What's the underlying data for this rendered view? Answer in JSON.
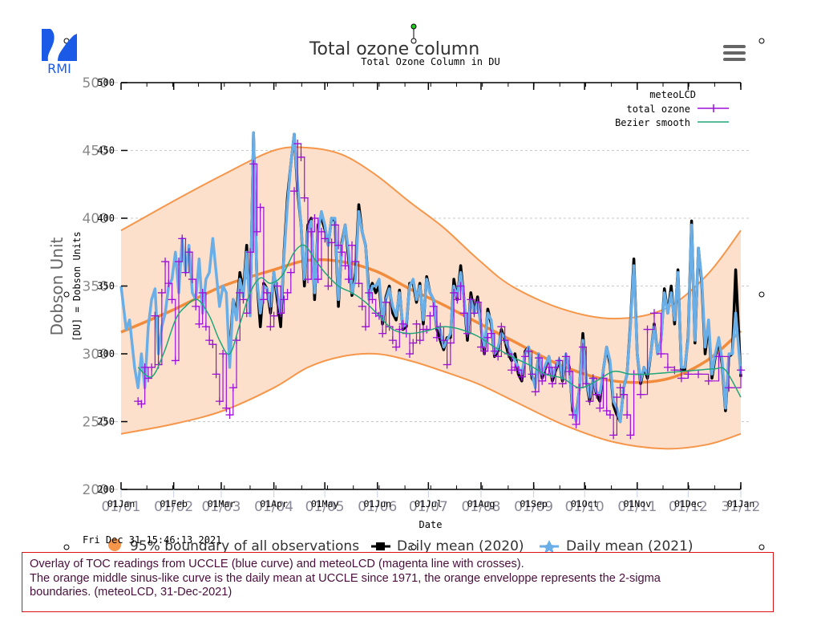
{
  "logo": {
    "text": "RMI",
    "color": "#1a5ae6"
  },
  "menu": {
    "icon": "hamburger-menu-icon"
  },
  "caption": {
    "lines": [
      "Overlay of TOC readings from UCCLE (blue curve) and meteoLCD (magenta line with crosses).",
      "The orange middle sinus-like curve is the daily mean at UCCLE since 1971, the orange enveloppe represents the 2-sigma",
      "boundaries. (meteoLCD, 31-Dec-2021)"
    ]
  },
  "timestamp": "Fri Dec 31 15:46:13 2021",
  "colors": {
    "envelope_fill": "#fde0cc",
    "envelope_line": "#f5964a",
    "mean_line": "#f28c3c",
    "uccle_2021": "#6aaee8",
    "uccle_2020": "#000000",
    "meteolcd": "#9b10d8",
    "bezier": "#1fa67a",
    "grid": "#c8c8c8"
  },
  "chart_data": {
    "type": "line",
    "title": "Total ozone column",
    "subtitle": "Total Ozone Column in DU",
    "xlabel": "Date",
    "ylabel_outer": "Dobson Unit",
    "ylabel_inner": "[DU] = Dobson Units",
    "ylim": [
      200,
      500
    ],
    "xlim_days": [
      0,
      365
    ],
    "y_ticks": [
      200,
      250,
      300,
      350,
      400,
      450,
      500
    ],
    "x_ticks_outer": [
      "01/01",
      "01/02",
      "01/03",
      "01/04",
      "01/05",
      "01/06",
      "01/07",
      "01/08",
      "01/09",
      "01/10",
      "01/11",
      "01/12",
      "31/12"
    ],
    "x_ticks_inner": [
      "01Jan",
      "01Feb",
      "01Mar",
      "01Apr",
      "01May",
      "01Jun",
      "01Jul",
      "01Aug",
      "01Sep",
      "01Oct",
      "01Nov",
      "01Dec",
      "01Jan"
    ],
    "x_tick_days": [
      0,
      31,
      59,
      90,
      120,
      151,
      181,
      212,
      243,
      273,
      304,
      334,
      365
    ],
    "grid": true,
    "legend_inner": {
      "position": "top-right",
      "title": "meteoLCD",
      "entries": [
        "total ozone",
        "Bezier smooth"
      ]
    },
    "legend_outer": {
      "position": "bottom",
      "entries": [
        "95% boundary of all observations",
        "Daily mean (2020)",
        "Daily mean (2021)"
      ]
    },
    "envelope": {
      "days": [
        0,
        30,
        60,
        90,
        110,
        130,
        150,
        170,
        190,
        210,
        230,
        260,
        290,
        320,
        345,
        365
      ],
      "upper": [
        391,
        412,
        432,
        450,
        452,
        447,
        432,
        412,
        393,
        370,
        350,
        333,
        326,
        333,
        358,
        391
      ],
      "lower": [
        241,
        248,
        258,
        275,
        290,
        298,
        300,
        295,
        287,
        278,
        266,
        248,
        235,
        230,
        233,
        241
      ],
      "mean": [
        316,
        332,
        350,
        362,
        369,
        368,
        361,
        348,
        336,
        323,
        310,
        291,
        280,
        281,
        295,
        317
      ]
    },
    "series": [
      {
        "name": "UCCLE daily mean (2021)",
        "days": [
          0,
          3,
          5,
          8,
          10,
          12,
          14,
          16,
          18,
          20,
          22,
          24,
          26,
          28,
          30,
          32,
          34,
          36,
          38,
          40,
          42,
          44,
          46,
          48,
          50,
          52,
          54,
          56,
          58,
          60,
          62,
          64,
          66,
          68,
          70,
          72,
          74,
          76,
          78,
          80,
          82,
          84,
          86,
          88,
          90,
          92,
          94,
          96,
          98,
          100,
          102,
          104,
          106,
          108,
          110,
          112,
          114,
          116,
          118,
          120,
          122,
          124,
          126,
          128,
          130,
          132,
          134,
          136,
          138,
          140,
          142,
          144,
          146,
          148,
          150,
          152,
          154,
          156,
          158,
          160,
          162,
          164,
          166,
          168,
          170,
          172,
          174,
          176,
          178,
          180,
          182,
          184,
          186,
          188,
          190,
          192,
          194,
          196,
          198,
          200,
          202,
          204,
          206,
          208,
          210,
          212,
          214,
          216,
          218,
          220,
          222,
          224,
          226,
          228,
          230,
          232,
          234,
          236,
          238,
          240,
          242,
          244,
          246,
          248,
          250,
          252,
          254,
          256,
          258,
          260,
          262,
          264,
          266,
          268,
          270,
          272,
          274,
          276,
          278,
          280,
          282,
          284,
          286,
          288,
          290,
          292,
          294,
          296,
          298,
          300,
          302,
          304,
          306,
          308,
          310,
          312,
          314,
          316,
          318,
          320,
          322,
          324,
          326,
          328,
          330,
          332,
          334,
          336,
          338,
          340,
          342,
          344,
          346,
          348,
          350,
          352,
          354,
          356,
          358,
          360,
          362,
          365
        ],
        "values": [
          350,
          318,
          325,
          290,
          275,
          300,
          275,
          320,
          340,
          348,
          300,
          320,
          330,
          350,
          355,
          375,
          345,
          385,
          360,
          380,
          345,
          340,
          370,
          330,
          355,
          360,
          385,
          360,
          335,
          350,
          345,
          290,
          340,
          325,
          355,
          342,
          375,
          328,
          463,
          355,
          330,
          350,
          348,
          335,
          360,
          345,
          330,
          372,
          410,
          440,
          462,
          425,
          395,
          355,
          390,
          398,
          345,
          390,
          405,
          395,
          380,
          400,
          400,
          340,
          380,
          395,
          375,
          345,
          355,
          405,
          390,
          380,
          340,
          350,
          350,
          355,
          325,
          340,
          348,
          335,
          328,
          345,
          320,
          322,
          350,
          355,
          340,
          350,
          325,
          355,
          345,
          340,
          320,
          318,
          305,
          310,
          315,
          350,
          342,
          360,
          340,
          315,
          340,
          330,
          338,
          320,
          305,
          330,
          325,
          300,
          305,
          315,
          312,
          305,
          300,
          295,
          290,
          285,
          300,
          305,
          285,
          275,
          300,
          285,
          292,
          298,
          283,
          290,
          296,
          282,
          300,
          288,
          262,
          250,
          275,
          310,
          280,
          268,
          282,
          272,
          270,
          288,
          305,
          295,
          265,
          260,
          250,
          275,
          285,
          320,
          365,
          300,
          280,
          290,
          285,
          300,
          320,
          300,
          310,
          345,
          330,
          345,
          325,
          360,
          290,
          290,
          310,
          395,
          310,
          378,
          355,
          305,
          325,
          285,
          300,
          312,
          295,
          260,
          300,
          300,
          330,
          285
        ]
      },
      {
        "name": "UCCLE daily mean (2020)",
        "days": [
          64,
          66,
          68,
          70,
          72,
          74,
          76,
          78,
          80,
          82,
          84,
          86,
          88,
          90,
          92,
          94,
          96,
          98,
          100,
          102,
          104,
          106,
          108,
          110,
          112,
          114,
          116,
          118,
          120,
          122,
          124,
          126,
          128,
          130,
          132,
          134,
          136,
          138,
          140,
          142,
          144,
          146,
          148,
          150,
          152,
          154,
          156,
          158,
          160,
          162,
          164,
          166,
          168,
          170,
          172,
          174,
          176,
          178,
          180,
          182,
          184,
          186,
          188,
          190,
          192,
          194,
          196,
          198,
          200,
          202,
          204,
          206,
          208,
          210,
          212,
          214,
          216,
          218,
          220,
          222,
          224,
          226,
          228,
          230,
          232,
          234,
          236,
          238,
          240,
          242,
          244,
          246,
          248,
          250,
          252,
          254,
          256,
          258,
          260,
          262,
          264,
          266,
          268,
          270,
          272,
          274,
          276,
          278,
          280,
          282,
          284,
          286,
          288,
          290,
          292,
          294,
          296,
          298,
          300,
          302,
          304,
          306,
          308,
          310,
          312,
          314,
          316,
          318,
          320,
          322,
          324,
          326,
          328,
          330,
          332,
          334,
          336,
          338,
          340,
          342,
          344,
          346,
          348,
          350,
          352,
          354,
          356,
          358,
          360,
          362,
          365
        ],
        "values": [
          300,
          340,
          330,
          360,
          345,
          380,
          330,
          463,
          355,
          320,
          352,
          348,
          330,
          360,
          340,
          320,
          375,
          415,
          440,
          462,
          420,
          395,
          350,
          395,
          400,
          340,
          395,
          400,
          392,
          380,
          400,
          398,
          335,
          382,
          395,
          370,
          343,
          360,
          410,
          390,
          380,
          345,
          352,
          345,
          350,
          322,
          342,
          350,
          330,
          325,
          347,
          318,
          320,
          352,
          352,
          338,
          352,
          322,
          357,
          345,
          340,
          318,
          310,
          303,
          312,
          312,
          355,
          340,
          365,
          340,
          310,
          345,
          330,
          342,
          320,
          300,
          333,
          322,
          298,
          302,
          318,
          310,
          300,
          295,
          300,
          285,
          280,
          302,
          305,
          282,
          278,
          300,
          282,
          290,
          298,
          280,
          288,
          295,
          280,
          298,
          290,
          258,
          253,
          275,
          315,
          280,
          265,
          282,
          270,
          265,
          288,
          305,
          292,
          262,
          255,
          250,
          275,
          285,
          322,
          370,
          300,
          278,
          290,
          282,
          300,
          322,
          300,
          310,
          348,
          330,
          350,
          322,
          362,
          288,
          288,
          312,
          398,
          308,
          378,
          352,
          300,
          322,
          282,
          298,
          310,
          292,
          258,
          298,
          300,
          362,
          283
        ]
      },
      {
        "name": "total ozone (meteoLCD)",
        "days": [
          10,
          12,
          14,
          16,
          18,
          20,
          22,
          24,
          26,
          28,
          30,
          32,
          34,
          36,
          38,
          40,
          42,
          44,
          46,
          48,
          50,
          52,
          54,
          56,
          58,
          60,
          62,
          64,
          66,
          68,
          70,
          72,
          74,
          76,
          78,
          80,
          82,
          84,
          86,
          88,
          90,
          92,
          94,
          96,
          98,
          100,
          102,
          104,
          106,
          108,
          110,
          112,
          114,
          116,
          118,
          120,
          122,
          124,
          126,
          128,
          130,
          132,
          134,
          136,
          138,
          140,
          142,
          144,
          146,
          148,
          150,
          152,
          154,
          156,
          158,
          160,
          162,
          164,
          166,
          168,
          170,
          172,
          174,
          176,
          178,
          180,
          182,
          184,
          186,
          188,
          190,
          192,
          194,
          196,
          198,
          200,
          202,
          204,
          206,
          208,
          210,
          212,
          214,
          216,
          218,
          220,
          222,
          224,
          226,
          228,
          230,
          232,
          234,
          236,
          238,
          240,
          242,
          244,
          246,
          248,
          250,
          252,
          254,
          256,
          258,
          260,
          262,
          264,
          266,
          268,
          270,
          272,
          274,
          276,
          278,
          280,
          282,
          284,
          286,
          288,
          290,
          292,
          294,
          296,
          298,
          300,
          302,
          306,
          310,
          314,
          318,
          322,
          326,
          330,
          334,
          340,
          346,
          352,
          358,
          365
        ],
        "values": [
          265,
          263,
          290,
          282,
          290,
          328,
          292,
          345,
          368,
          352,
          340,
          295,
          368,
          385,
          360,
          375,
          355,
          335,
          322,
          345,
          320,
          310,
          307,
          285,
          265,
          300,
          260,
          255,
          275,
          310,
          345,
          340,
          330,
          375,
          440,
          390,
          408,
          340,
          345,
          320,
          328,
          350,
          330,
          340,
          345,
          360,
          420,
          455,
          445,
          415,
          355,
          390,
          400,
          355,
          390,
          385,
          350,
          382,
          395,
          380,
          375,
          365,
          355,
          380,
          368,
          352,
          335,
          320,
          345,
          340,
          330,
          328,
          315,
          338,
          320,
          310,
          305,
          318,
          322,
          315,
          300,
          308,
          322,
          310,
          318,
          318,
          328,
          335,
          312,
          320,
          310,
          292,
          308,
          345,
          340,
          350,
          330,
          315,
          340,
          330,
          338,
          305,
          302,
          312,
          315,
          302,
          298,
          320,
          310,
          300,
          288,
          290,
          288,
          283,
          298,
          302,
          285,
          272,
          297,
          280,
          285,
          290,
          278,
          290,
          295,
          278,
          298,
          287,
          255,
          248,
          275,
          305,
          278,
          265,
          282,
          270,
          260,
          282,
          258,
          255,
          240,
          268,
          275,
          270,
          255,
          240,
          285,
          270,
          318,
          330,
          300,
          290,
          288,
          282,
          285,
          285,
          280,
          298,
          275,
          288,
          301,
          266
        ]
      },
      {
        "name": "Bezier smooth",
        "days": [
          10,
          18,
          25,
          32,
          38,
          45,
          52,
          58,
          64,
          70,
          76,
          82,
          88,
          95,
          102,
          108,
          114,
          120,
          128,
          136,
          144,
          152,
          160,
          170,
          180,
          190,
          200,
          210,
          220,
          230,
          240,
          250,
          260,
          270,
          280,
          290,
          300,
          310,
          320,
          330,
          340,
          350,
          356,
          365
        ],
        "values": [
          290,
          283,
          300,
          325,
          335,
          340,
          328,
          310,
          300,
          322,
          345,
          356,
          352,
          358,
          375,
          380,
          370,
          360,
          350,
          345,
          338,
          328,
          318,
          315,
          317,
          320,
          318,
          313,
          305,
          298,
          292,
          285,
          282,
          275,
          280,
          287,
          285,
          285,
          286,
          287,
          288,
          289,
          288,
          268
        ]
      }
    ]
  }
}
